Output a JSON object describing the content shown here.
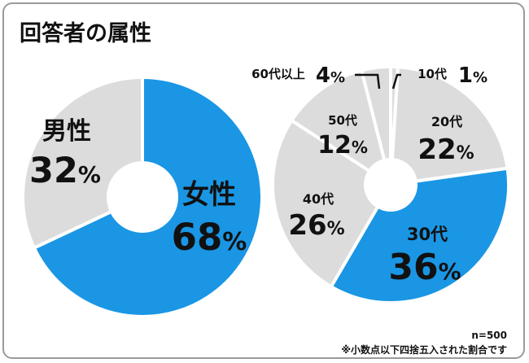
{
  "title": "回答者の属性",
  "footer": {
    "sample": "n=500",
    "note": "※小数点以下四捨五入された割合です"
  },
  "colors": {
    "highlight": "#1a96e4",
    "base": "#dcdcdc",
    "text": "#111111",
    "separator": "#ffffff"
  },
  "chart_data": [
    {
      "type": "pie",
      "title": "",
      "slices": [
        {
          "label": "女性",
          "value": 68,
          "display": "68%",
          "highlight": true
        },
        {
          "label": "男性",
          "value": 32,
          "display": "32%",
          "highlight": false
        }
      ]
    },
    {
      "type": "pie",
      "title": "",
      "slices": [
        {
          "label": "10代",
          "value": 1,
          "display": "1%",
          "highlight": false
        },
        {
          "label": "20代",
          "value": 22,
          "display": "22%",
          "highlight": false
        },
        {
          "label": "30代",
          "value": 36,
          "display": "36%",
          "highlight": true
        },
        {
          "label": "40代",
          "value": 26,
          "display": "26%",
          "highlight": false
        },
        {
          "label": "50代",
          "value": 12,
          "display": "12%",
          "highlight": false
        },
        {
          "label": "60代以上",
          "value": 4,
          "display": "4%",
          "highlight": false
        }
      ]
    }
  ]
}
